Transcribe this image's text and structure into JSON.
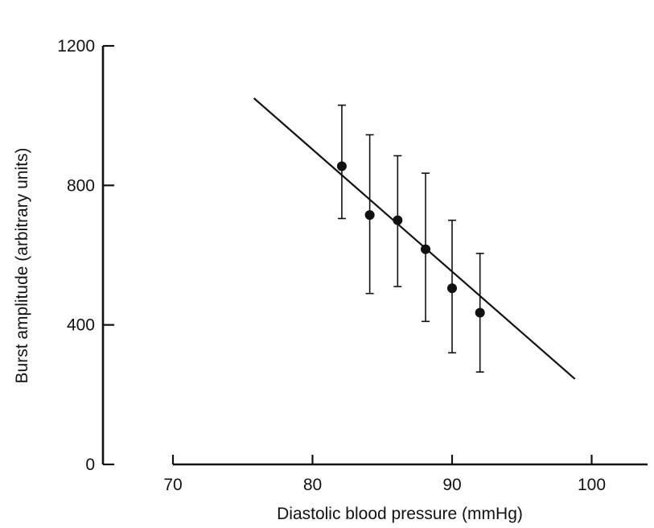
{
  "chart_data": {
    "type": "scatter",
    "title": "",
    "xlabel": "Diastolic blood pressure (mmHg)",
    "ylabel": "Burst amplitude (arbitrary units)",
    "xlim": [
      70,
      103
    ],
    "ylim": [
      0,
      1200
    ],
    "x_ticks": [
      70,
      80,
      90,
      100
    ],
    "y_ticks": [
      0,
      400,
      800,
      1200
    ],
    "x_tick_labels": [
      "70",
      "80",
      "90",
      "100"
    ],
    "y_tick_labels": [
      "0",
      "400",
      "800",
      "1200"
    ],
    "grid": false,
    "series": [
      {
        "points": [
          {
            "x": 82.1,
            "y": 855,
            "err_low": 705,
            "err_high": 1030
          },
          {
            "x": 84.1,
            "y": 715,
            "err_low": 490,
            "err_high": 945
          },
          {
            "x": 86.1,
            "y": 700,
            "err_low": 510,
            "err_high": 885
          },
          {
            "x": 88.1,
            "y": 617,
            "err_low": 410,
            "err_high": 835
          },
          {
            "x": 90.0,
            "y": 505,
            "err_low": 320,
            "err_high": 700
          },
          {
            "x": 92.0,
            "y": 435,
            "err_low": 265,
            "err_high": 605
          }
        ]
      }
    ],
    "fit_line": {
      "x": [
        75.8,
        98.8
      ],
      "y": [
        1050,
        245
      ]
    },
    "colors": {
      "ink": "#111111",
      "background": "#ffffff"
    }
  }
}
